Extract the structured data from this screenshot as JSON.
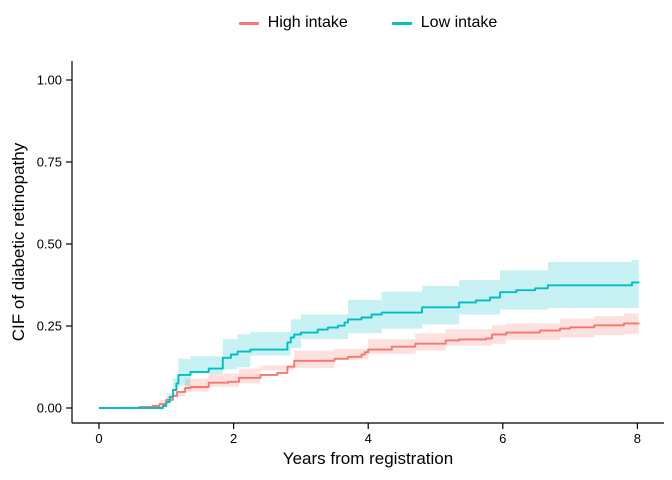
{
  "chart_data": {
    "type": "line",
    "subtype": "step-cif-with-confidence-bands",
    "title": "",
    "xlabel": "Years from registration",
    "ylabel": "CIF of diabetic retinopathy",
    "xlim": [
      0,
      8.3
    ],
    "ylim": [
      0,
      1.05
    ],
    "x_ticks": [
      0,
      2,
      4,
      6,
      8
    ],
    "x_tick_labels": [
      "0",
      "2",
      "4",
      "6",
      "8"
    ],
    "y_ticks": [
      0,
      0.25,
      0.5,
      0.75,
      1.0
    ],
    "y_tick_labels": [
      "0.00",
      "0.25",
      "0.50",
      "0.75",
      "1.00"
    ],
    "grid": false,
    "legend_position": "top-center",
    "axis_color": "#000000",
    "series": [
      {
        "name": "High intake",
        "color": "#F8766D",
        "band_alpha": 0.22,
        "points": [
          [
            0,
            0
          ],
          [
            0.55,
            0
          ],
          [
            0.6,
            0.003
          ],
          [
            0.8,
            0.006
          ],
          [
            0.9,
            0.012
          ],
          [
            1.0,
            0.025
          ],
          [
            1.1,
            0.037
          ],
          [
            1.16,
            0.049
          ],
          [
            1.28,
            0.061
          ],
          [
            1.36,
            0.064
          ],
          [
            1.63,
            0.077
          ],
          [
            1.92,
            0.08
          ],
          [
            2.08,
            0.092
          ],
          [
            2.4,
            0.101
          ],
          [
            2.65,
            0.107
          ],
          [
            2.8,
            0.126
          ],
          [
            2.9,
            0.144
          ],
          [
            3.5,
            0.15
          ],
          [
            3.7,
            0.156
          ],
          [
            3.9,
            0.163
          ],
          [
            3.95,
            0.17
          ],
          [
            4.0,
            0.178
          ],
          [
            4.35,
            0.187
          ],
          [
            4.7,
            0.196
          ],
          [
            5.15,
            0.206
          ],
          [
            5.35,
            0.209
          ],
          [
            5.75,
            0.212
          ],
          [
            5.84,
            0.224
          ],
          [
            6.05,
            0.23
          ],
          [
            6.55,
            0.236
          ],
          [
            6.85,
            0.242
          ],
          [
            7.0,
            0.246
          ],
          [
            7.36,
            0.252
          ],
          [
            7.8,
            0.258
          ],
          [
            8.02,
            0.259
          ]
        ],
        "band": [
          [
            0.3,
            0,
            0.005
          ],
          [
            0.9,
            0.002,
            0.025
          ],
          [
            1.0,
            0.01,
            0.045
          ],
          [
            1.28,
            0.035,
            0.09
          ],
          [
            1.63,
            0.05,
            0.105
          ],
          [
            2.08,
            0.065,
            0.12
          ],
          [
            2.4,
            0.075,
            0.13
          ],
          [
            2.9,
            0.115,
            0.175
          ],
          [
            3.5,
            0.122,
            0.18
          ],
          [
            4.0,
            0.148,
            0.21
          ],
          [
            4.7,
            0.165,
            0.228
          ],
          [
            5.15,
            0.175,
            0.24
          ],
          [
            5.84,
            0.19,
            0.252
          ],
          [
            6.05,
            0.196,
            0.258
          ],
          [
            6.85,
            0.208,
            0.272
          ],
          [
            7.36,
            0.215,
            0.28
          ],
          [
            7.8,
            0.222,
            0.288
          ],
          [
            8.02,
            0.225,
            0.29
          ]
        ]
      },
      {
        "name": "Low intake",
        "color": "#00BFC4",
        "band_alpha": 0.22,
        "points": [
          [
            0,
            0
          ],
          [
            0.9,
            0
          ],
          [
            0.95,
            0.006
          ],
          [
            1.0,
            0.018
          ],
          [
            1.05,
            0.034
          ],
          [
            1.1,
            0.055
          ],
          [
            1.15,
            0.075
          ],
          [
            1.18,
            0.101
          ],
          [
            1.36,
            0.11
          ],
          [
            1.63,
            0.12
          ],
          [
            1.84,
            0.153
          ],
          [
            1.96,
            0.163
          ],
          [
            2.06,
            0.172
          ],
          [
            2.25,
            0.178
          ],
          [
            2.8,
            0.2
          ],
          [
            2.85,
            0.215
          ],
          [
            2.9,
            0.224
          ],
          [
            3.0,
            0.23
          ],
          [
            3.25,
            0.239
          ],
          [
            3.4,
            0.245
          ],
          [
            3.55,
            0.251
          ],
          [
            3.65,
            0.261
          ],
          [
            3.7,
            0.27
          ],
          [
            3.9,
            0.276
          ],
          [
            4.05,
            0.285
          ],
          [
            4.2,
            0.291
          ],
          [
            4.8,
            0.307
          ],
          [
            5.35,
            0.322
          ],
          [
            5.6,
            0.328
          ],
          [
            5.81,
            0.337
          ],
          [
            5.96,
            0.353
          ],
          [
            6.2,
            0.359
          ],
          [
            6.48,
            0.365
          ],
          [
            6.67,
            0.374
          ],
          [
            7.92,
            0.383
          ],
          [
            8.02,
            0.385
          ]
        ],
        "band": [
          [
            0.9,
            0,
            0.004
          ],
          [
            1.0,
            0.005,
            0.035
          ],
          [
            1.1,
            0.02,
            0.09
          ],
          [
            1.18,
            0.06,
            0.15
          ],
          [
            1.36,
            0.068,
            0.158
          ],
          [
            1.84,
            0.105,
            0.21
          ],
          [
            2.06,
            0.118,
            0.225
          ],
          [
            2.25,
            0.124,
            0.232
          ],
          [
            2.85,
            0.16,
            0.27
          ],
          [
            3.0,
            0.183,
            0.285
          ],
          [
            3.7,
            0.21,
            0.33
          ],
          [
            4.2,
            0.228,
            0.355
          ],
          [
            4.8,
            0.242,
            0.372
          ],
          [
            5.35,
            0.255,
            0.39
          ],
          [
            5.96,
            0.285,
            0.42
          ],
          [
            6.67,
            0.3,
            0.445
          ],
          [
            7.92,
            0.305,
            0.452
          ],
          [
            8.02,
            0.305,
            0.452
          ]
        ]
      }
    ]
  }
}
